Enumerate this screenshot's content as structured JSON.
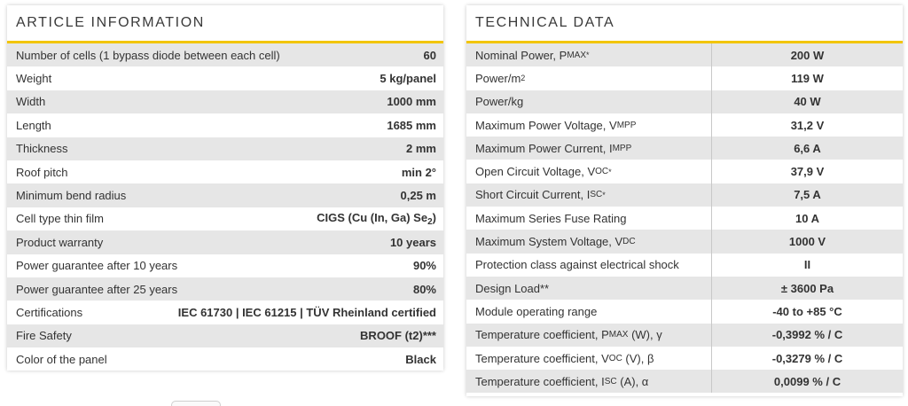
{
  "article": {
    "title": "ARTICLE INFORMATION",
    "rows": [
      {
        "label": "Number of cells (1 bypass diode between each cell)",
        "value": "60"
      },
      {
        "label": "Weight",
        "value": "5 kg/panel"
      },
      {
        "label": "Width",
        "value": "1000 mm"
      },
      {
        "label": "Length",
        "value": "1685 mm"
      },
      {
        "label": "Thickness",
        "value": "2 mm"
      },
      {
        "label": "Roof pitch",
        "value": "min 2°"
      },
      {
        "label": "Minimum bend radius",
        "value": "0,25 m"
      },
      {
        "label": "Cell type thin film",
        "value_main": "CIGS (Cu (In, Ga) Se",
        "value_sub": "2",
        "value_tail": ")"
      },
      {
        "label": "Product warranty",
        "value": "10 years"
      },
      {
        "label": "Power guarantee after 10 years",
        "value": "90%"
      },
      {
        "label": "Power guarantee after 25 years",
        "value": "80%"
      },
      {
        "label": "Certifications",
        "value": "IEC 61730 | IEC 61215 | TÜV Rheinland certified"
      },
      {
        "label": "Fire Safety",
        "value": "BROOF (t2)***"
      },
      {
        "label": "Color of the panel",
        "value": "Black"
      }
    ]
  },
  "technical": {
    "title": "TECHNICAL DATA",
    "rows": [
      {
        "label": "Nominal Power, P",
        "sub": "MAX",
        "tail": "*",
        "value": "200 W"
      },
      {
        "label": "Power/m",
        "sup": "2",
        "value": "119 W"
      },
      {
        "label": "Power/kg",
        "value": "40 W"
      },
      {
        "label": "Maximum Power Voltage, V",
        "sub": "MPP",
        "value": "31,2 V"
      },
      {
        "label": "Maximum Power Current, I",
        "sub": "MPP",
        "value": "6,6 A"
      },
      {
        "label": "Open Circuit Voltage, V",
        "sub": "OC",
        "tail": "*",
        "value": "37,9 V"
      },
      {
        "label": "Short Circuit Current, I",
        "sub": "SC",
        "tail": "*",
        "value": "7,5 A"
      },
      {
        "label": "Maximum Series Fuse Rating",
        "value": "10 A"
      },
      {
        "label": "Maximum System Voltage, V",
        "sub": "DC",
        "value": "1000 V"
      },
      {
        "label": "Protection class against electrical shock",
        "value": "II"
      },
      {
        "label": "Design Load**",
        "value": "± 3600 Pa"
      },
      {
        "label": "Module operating range",
        "value": "-40 to +85 °C"
      },
      {
        "label": "Temperature coefficient, P",
        "sub": "MAX",
        "tail": " (W), γ",
        "value": "-0,3992 % / C"
      },
      {
        "label": "Temperature coefficient, V",
        "sub": "OC",
        "tail": " (V), β",
        "value": "-0,3279 % / C"
      },
      {
        "label": "Temperature coefficient, I",
        "sub": "SC",
        "tail": " (A), α",
        "value": "0,0099 % / C"
      }
    ]
  },
  "colors": {
    "accent": "#f2c500",
    "row_shade": "#e6e6e6"
  }
}
